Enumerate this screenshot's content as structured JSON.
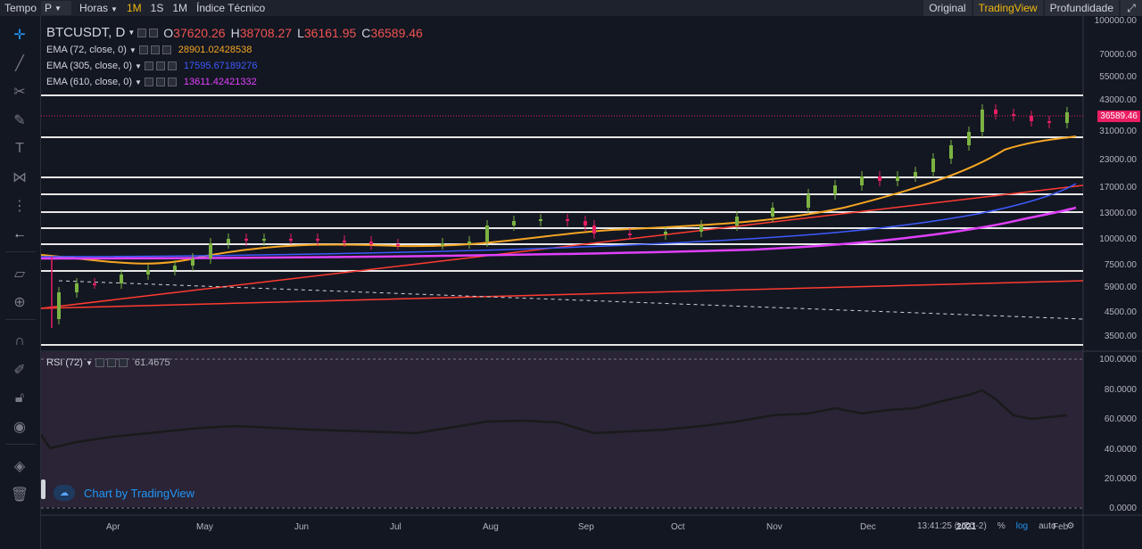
{
  "topbar": {
    "tempo_label": "Tempo",
    "p_select": "P",
    "horas_select": "Horas",
    "intervals": [
      "1M",
      "1S",
      "1M"
    ],
    "active_interval": 0,
    "indicator_label": "Índice Técnico",
    "right": [
      "Original",
      "TradingView",
      "Profundidade"
    ],
    "active_right": 1,
    "fullscreen_icon": "fullscreen-icon"
  },
  "legend": {
    "symbol": "BTCUSDT, D",
    "o_label": "O",
    "o_value": "37620.26",
    "h_label": "H",
    "h_value": "38708.27",
    "l_label": "L",
    "l_value": "36161.95",
    "c_label": "C",
    "c_value": "36589.46",
    "ema": [
      {
        "name": "EMA (72, close, 0)",
        "value": "28901.02428538",
        "color": "#f5a623"
      },
      {
        "name": "EMA (305, close, 0)",
        "value": "17595.67189276",
        "color": "#3d5afe"
      },
      {
        "name": "EMA (610, close, 0)",
        "value": "13611.42421332",
        "color": "#e040fb"
      }
    ]
  },
  "rsi": {
    "name": "RSI (72)",
    "value": "61.4675"
  },
  "price_scale": [
    "100000.00",
    "70000.00",
    "55000.00",
    "43000.00",
    "31000.00",
    "23000.00",
    "17000.00",
    "13000.00",
    "10000.00",
    "7500.00",
    "5900.00",
    "4500.00",
    "3500.00"
  ],
  "last_price": "36589.46",
  "rsi_scale": [
    "100.0000",
    "80.0000",
    "60.0000",
    "40.0000",
    "20.0000",
    "0.0000"
  ],
  "time_axis": [
    "Apr",
    "May",
    "Jun",
    "Jul",
    "Aug",
    "Sep",
    "Oct",
    "Nov",
    "Dec",
    "2021",
    "Feb"
  ],
  "watermark": "Chart by TradingView",
  "bottom": {
    "time": "13:41:25 (UTC-2)",
    "percent": "%",
    "log": "log",
    "auto": "auto",
    "gear_icon": "gear-icon"
  },
  "colors": {
    "up": "#26a69a",
    "down": "#ef5350",
    "green_candle": "#7cb342",
    "pink_candle": "#e91e63",
    "ema72": "#f5a623",
    "ema305": "#3d5afe",
    "ema610": "#e040fb",
    "trend_red": "#ff3b30",
    "rsi_bg": "#2a2436"
  },
  "left_tools": [
    "crosshair-icon",
    "trendline-icon",
    "fib-icon",
    "brush-icon",
    "text-icon",
    "pattern-icon",
    "measure-icon",
    "back-arrow-icon",
    "ruler-icon",
    "zoom-icon",
    "magnet-icon",
    "lock-drawing-icon",
    "lock-icon",
    "eye-icon",
    "layers-icon",
    "trash-icon"
  ]
}
